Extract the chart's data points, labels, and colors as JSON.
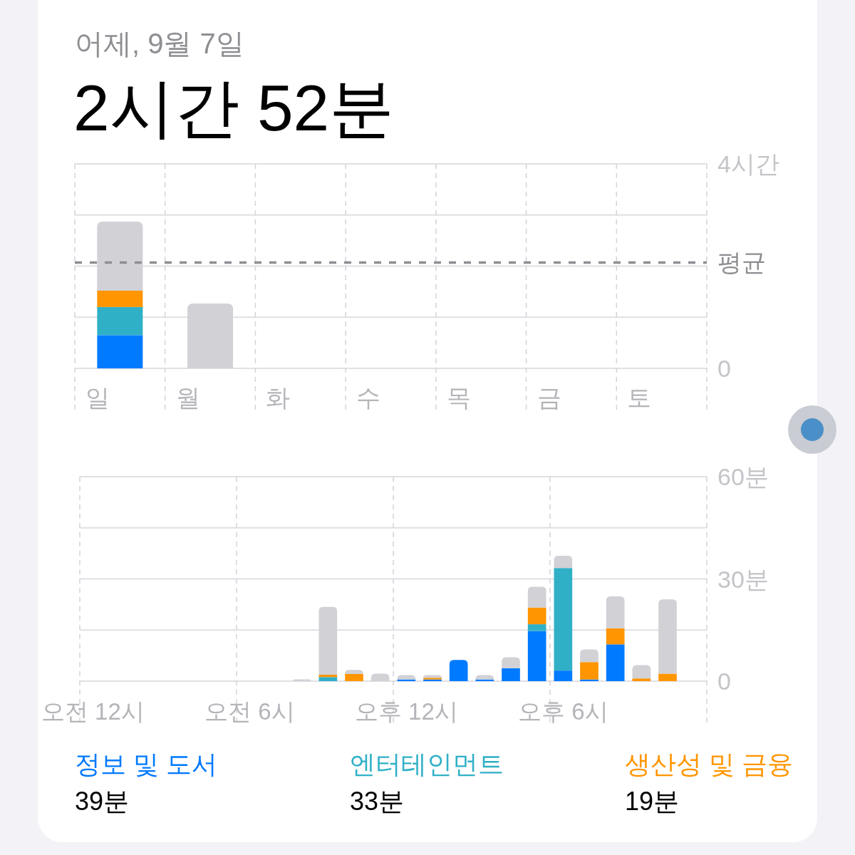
{
  "chart_data": [
    {
      "type": "bar",
      "title": "어제, 9월 7일",
      "subtitle": "2시간 52분",
      "categories": [
        "일",
        "월",
        "화",
        "수",
        "목",
        "금",
        "토"
      ],
      "stacked": true,
      "series": [
        {
          "color": "#007aff",
          "values": [
            0.65,
            null,
            null,
            null,
            null,
            null,
            null
          ]
        },
        {
          "color": "#30b0c7",
          "values": [
            0.55,
            null,
            null,
            null,
            null,
            null,
            null
          ]
        },
        {
          "color": "#ff9500",
          "values": [
            0.32,
            null,
            null,
            null,
            null,
            null,
            null
          ]
        },
        {
          "color": "#d1d1d6",
          "values": [
            1.35,
            1.27,
            null,
            null,
            null,
            null,
            null
          ]
        }
      ],
      "ylim": [
        0,
        4
      ],
      "yticks": [
        0,
        {
          "value": 1,
          "label": null
        },
        {
          "value": 2,
          "label": null
        },
        {
          "value": 3,
          "label": null
        },
        {
          "value": 4,
          "label": "4시간"
        }
      ],
      "grid": true,
      "ref_lines": [
        {
          "axis": "y",
          "value": 2.07,
          "label": "평균",
          "color": "#8e8e93",
          "line_style": "dashed"
        }
      ]
    },
    {
      "type": "bar",
      "categories": [
        "오전 12시",
        null,
        null,
        null,
        null,
        null,
        "오전 6시",
        null,
        null,
        null,
        null,
        null,
        "오후 12시",
        null,
        null,
        null,
        null,
        null,
        "오후 6시",
        null,
        null,
        null,
        null,
        null
      ],
      "stacked": true,
      "series": [
        {
          "name": "정보 및 도서",
          "color": "#007aff",
          "values": [
            null,
            null,
            null,
            null,
            null,
            null,
            null,
            null,
            null,
            null,
            null,
            null,
            0.5,
            0.5,
            6.2,
            0.5,
            3.8,
            14.7,
            3.1,
            0.5,
            10.8,
            null,
            null,
            null
          ]
        },
        {
          "name": "엔터테인먼트",
          "color": "#30b0c7",
          "values": [
            null,
            null,
            null,
            null,
            null,
            null,
            null,
            null,
            null,
            1.2,
            null,
            null,
            null,
            null,
            null,
            null,
            null,
            2.0,
            30.1,
            null,
            null,
            null,
            null,
            null
          ]
        },
        {
          "name": "생산성 및 금융",
          "color": "#ff9500",
          "values": [
            null,
            null,
            null,
            null,
            null,
            null,
            null,
            null,
            null,
            0.7,
            2.1,
            null,
            null,
            0.5,
            null,
            null,
            null,
            4.9,
            null,
            5.1,
            4.7,
            0.8,
            2.2,
            null
          ]
        },
        {
          "color": "#d1d1d6",
          "values": [
            null,
            null,
            null,
            null,
            null,
            null,
            null,
            null,
            0.5,
            19.9,
            1.2,
            2.2,
            1.3,
            0.8,
            null,
            1.3,
            3.2,
            6.1,
            3.6,
            3.7,
            9.4,
            3.9,
            21.8,
            null
          ]
        }
      ],
      "ylim": [
        0,
        60
      ],
      "yticks": [
        0,
        {
          "value": 15,
          "label": null
        },
        {
          "value": 30,
          "label": "30분"
        },
        {
          "value": 45,
          "label": null
        },
        {
          "value": 60,
          "label": "60분"
        }
      ],
      "grid": true,
      "legend": "bottom",
      "annotations": [
        "39분",
        "33분",
        "19분"
      ]
    }
  ]
}
